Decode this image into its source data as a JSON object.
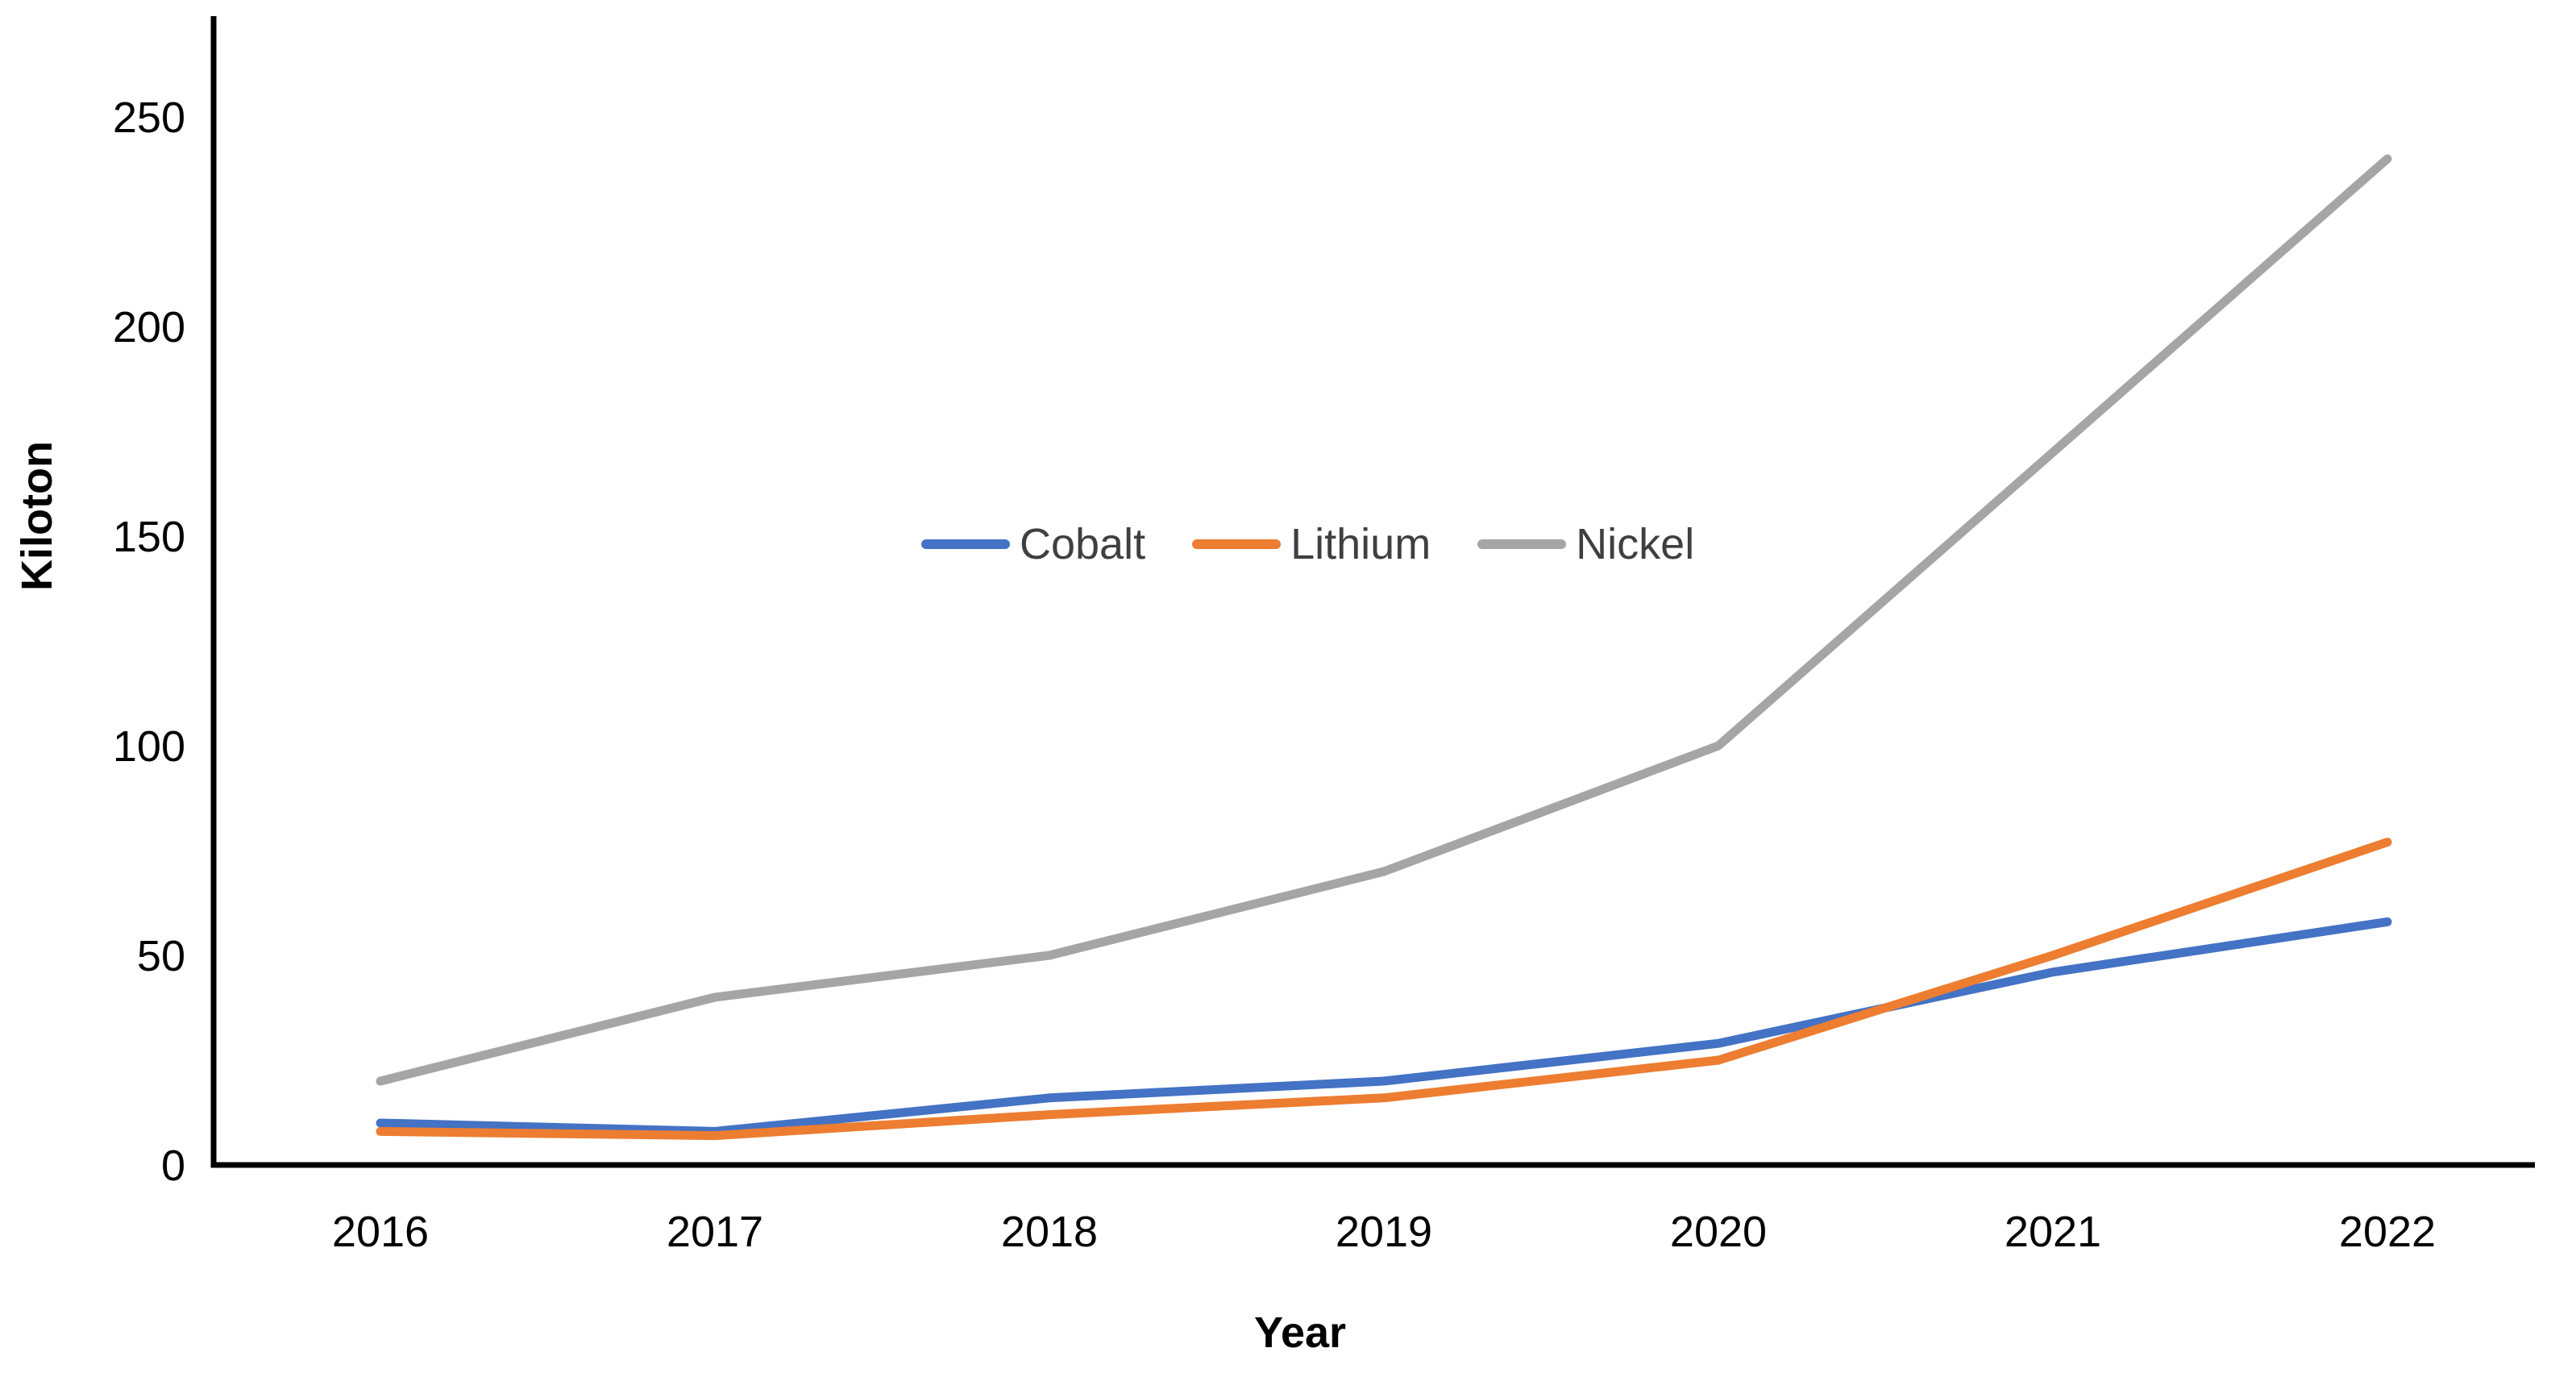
{
  "chart_data": {
    "type": "line",
    "title": "",
    "xlabel": "Year",
    "ylabel": "Kiloton",
    "categories": [
      "2016",
      "2017",
      "2018",
      "2019",
      "2020",
      "2021",
      "2022"
    ],
    "series": [
      {
        "name": "Cobalt",
        "color": "#4472C4",
        "values": [
          10,
          8,
          16,
          20,
          29,
          46,
          58
        ]
      },
      {
        "name": "Lithium",
        "color": "#ED7D31",
        "values": [
          8,
          7,
          12,
          16,
          25,
          50,
          77
        ]
      },
      {
        "name": "Nickel",
        "color": "#A5A5A5",
        "values": [
          20,
          40,
          50,
          70,
          100,
          170,
          240
        ]
      }
    ],
    "y_ticks": [
      0,
      50,
      100,
      150,
      200,
      250
    ],
    "ylim": [
      0,
      250
    ],
    "grid": false,
    "legend_position": "center",
    "legend_orientation": "horizontal"
  },
  "colors": {
    "axis_line": "#000000",
    "tick_label": "#000000",
    "legend_text": "#3F3F3F",
    "background": "#FFFFFF"
  }
}
